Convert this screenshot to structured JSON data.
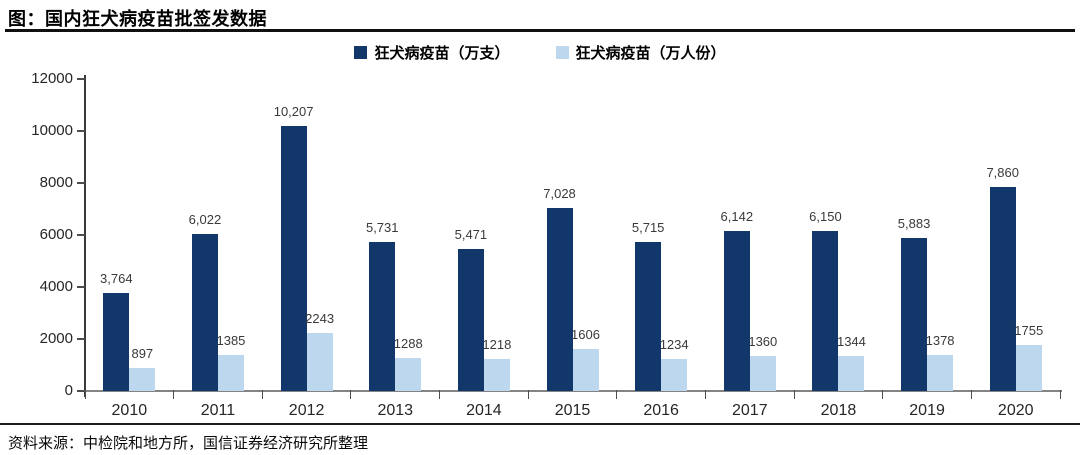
{
  "header": {
    "title": "图：国内狂犬病疫苗批签发数据"
  },
  "legend": {
    "items": [
      {
        "label": "狂犬病疫苗（万支）",
        "color": "#12386b"
      },
      {
        "label": "狂犬病疫苗（万人份）",
        "color": "#bdd7ee"
      }
    ]
  },
  "chart_data": {
    "type": "bar",
    "title": "国内狂犬病疫苗批签发数据",
    "categories": [
      "2010",
      "2011",
      "2012",
      "2013",
      "2014",
      "2015",
      "2016",
      "2017",
      "2018",
      "2019",
      "2020"
    ],
    "series": [
      {
        "name": "狂犬病疫苗（万支）",
        "color": "#12386b",
        "values": [
          3764,
          6022,
          10207,
          5731,
          5471,
          7028,
          5715,
          6142,
          6150,
          5883,
          7860
        ],
        "labels": [
          "3,764",
          "6,022",
          "10,207",
          "5,731",
          "5,471",
          "7,028",
          "5,715",
          "6,142",
          "6,150",
          "5,883",
          "7,860"
        ]
      },
      {
        "name": "狂犬病疫苗（万人份）",
        "color": "#bdd7ee",
        "values": [
          897,
          1385,
          2243,
          1288,
          1218,
          1606,
          1234,
          1360,
          1344,
          1378,
          1755
        ],
        "labels": [
          "897",
          "1385",
          "2243",
          "1288",
          "1218",
          "1606",
          "1234",
          "1360",
          "1344",
          "1378",
          "1755"
        ]
      }
    ],
    "xlabel": "",
    "ylabel": "",
    "ylim": [
      0,
      12000
    ],
    "yticks": [
      0,
      2000,
      4000,
      6000,
      8000,
      10000,
      12000
    ],
    "grid": false,
    "legend_position": "top-center"
  },
  "footer": {
    "source": "资料来源：中检院和地方所，国信证券经济研究所整理"
  }
}
